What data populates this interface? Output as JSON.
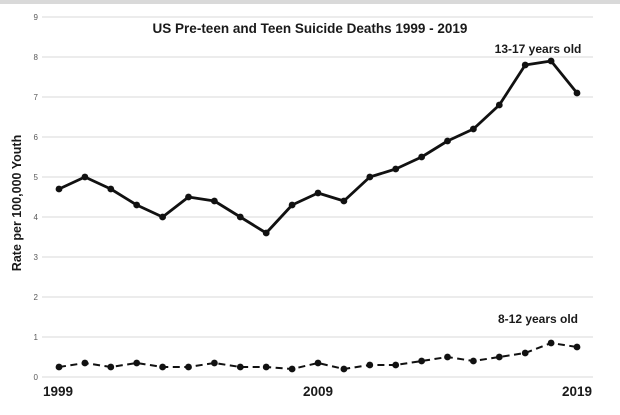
{
  "window": {
    "top_edge_color": "#d9d9d9",
    "background_color": "#ffffff"
  },
  "chart_data": {
    "type": "line",
    "title": "US Pre-teen and Teen Suicide Deaths 1999 - 2019",
    "xlabel": "",
    "ylabel": "Rate per 100,000 Youth",
    "x": [
      1999,
      2000,
      2001,
      2002,
      2003,
      2004,
      2005,
      2006,
      2007,
      2008,
      2009,
      2010,
      2011,
      2012,
      2013,
      2014,
      2015,
      2016,
      2017,
      2018,
      2019
    ],
    "x_tick_labels": [
      "1999",
      "2009",
      "2019"
    ],
    "x_tick_years": [
      1999,
      2009,
      2019
    ],
    "y_ticks": [
      0,
      1,
      2,
      3,
      4,
      5,
      6,
      7,
      8,
      9
    ],
    "ylim": [
      0,
      9
    ],
    "grid": "horizontal-light-gray",
    "gridline_color": "#d9d9d9",
    "line_color": "#111111",
    "legend_position": "inline-labels-above-lines",
    "series": [
      {
        "name": "13-17 years old",
        "style": "solid",
        "marker": "circle",
        "values": [
          4.7,
          5.0,
          4.7,
          4.3,
          4.0,
          4.5,
          4.4,
          4.0,
          3.6,
          4.3,
          4.6,
          4.4,
          5.0,
          5.2,
          5.5,
          5.9,
          6.2,
          6.8,
          7.8,
          7.9,
          7.1
        ]
      },
      {
        "name": "8-12 years old",
        "style": "dashed",
        "marker": "circle",
        "values": [
          0.25,
          0.35,
          0.25,
          0.35,
          0.25,
          0.25,
          0.35,
          0.25,
          0.25,
          0.2,
          0.35,
          0.2,
          0.3,
          0.3,
          0.4,
          0.5,
          0.4,
          0.5,
          0.6,
          0.85,
          0.75
        ]
      }
    ]
  }
}
